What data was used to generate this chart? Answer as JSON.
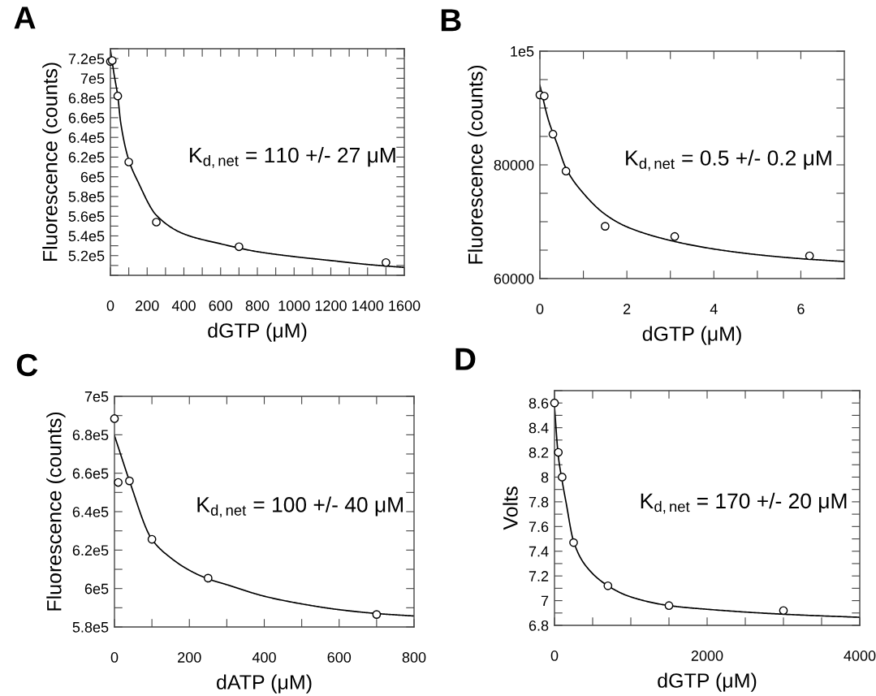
{
  "chart_data": [
    {
      "type": "scatter",
      "title": "A",
      "xlabel": "dGTP (μM)",
      "ylabel": "Fluorescence (counts)",
      "annotations": [
        "K$_{d,net}$ = 110 +/- 27 μM"
      ],
      "xlim": [
        0,
        1600
      ],
      "ylim": [
        500000,
        730000
      ],
      "xticks": [
        0,
        {
          "value": 100,
          "label": null
        },
        200,
        {
          "value": 300,
          "label": null
        },
        400,
        {
          "value": 500,
          "label": null
        },
        600,
        {
          "value": 700,
          "label": null
        },
        800,
        {
          "value": 900,
          "label": null
        },
        1000,
        {
          "value": 1100,
          "label": null
        },
        1200,
        {
          "value": 1300,
          "label": null
        },
        1400,
        {
          "value": 1500,
          "label": null
        },
        1600
      ],
      "yticks": [
        {
          "value": 500000,
          "label": null
        },
        {
          "value": 510000,
          "label": null
        },
        {
          "value": 520000,
          "label": "5.2e5"
        },
        {
          "value": 530000,
          "label": null
        },
        {
          "value": 540000,
          "label": "5.4e5"
        },
        {
          "value": 550000,
          "label": null
        },
        {
          "value": 560000,
          "label": "5.6e5"
        },
        {
          "value": 570000,
          "label": null
        },
        {
          "value": 580000,
          "label": "5.8e5"
        },
        {
          "value": 590000,
          "label": null
        },
        {
          "value": 600000,
          "label": "6e5"
        },
        {
          "value": 610000,
          "label": null
        },
        {
          "value": 620000,
          "label": "6.2e5"
        },
        {
          "value": 630000,
          "label": null
        },
        {
          "value": 640000,
          "label": "6.4e5"
        },
        {
          "value": 650000,
          "label": null
        },
        {
          "value": 660000,
          "label": "6.6e5"
        },
        {
          "value": 670000,
          "label": null
        },
        {
          "value": 680000,
          "label": "6.8e5"
        },
        {
          "value": 690000,
          "label": null
        },
        {
          "value": 700000,
          "label": "7e5"
        },
        {
          "value": 710000,
          "label": null
        },
        {
          "value": 720000,
          "label": "7.2e5"
        },
        {
          "value": 730000,
          "label": null
        }
      ],
      "grid": false,
      "legend": false,
      "series": [
        {
          "type": "scatter",
          "color": "#000000",
          "marker": "circle",
          "x": [
            0,
            10,
            40,
            100,
            250,
            700,
            1500
          ],
          "values": [
            717000,
            718000,
            682000,
            615000,
            554000,
            529000,
            513000
          ]
        },
        {
          "type": "line",
          "color": "#000000",
          "marker": "none",
          "line_style": "solid",
          "x": [
            0,
            20,
            40,
            56,
            100,
            150,
            250,
            400,
            600,
            800,
            1000,
            1200,
            1400,
            1600
          ],
          "values": [
            729000,
            704000,
            682000,
            655000,
            617000,
            595000,
            561000,
            542000,
            532000,
            524000,
            519000,
            515000,
            511000,
            508000
          ]
        }
      ]
    },
    {
      "type": "scatter",
      "title": "B",
      "xlabel": "dGTP (μM)",
      "ylabel": "Fluorescence (counts)",
      "annotations": [
        "K$_{d,net}$ = 0.5 +/- 0.2 μM"
      ],
      "xlim": [
        0,
        7
      ],
      "ylim": [
        60000,
        100000
      ],
      "xticks": [
        0,
        {
          "value": 1,
          "label": null
        },
        2,
        {
          "value": 3,
          "label": null
        },
        4,
        {
          "value": 5,
          "label": null
        },
        6
      ],
      "yticks": [
        60000,
        {
          "value": 65000,
          "label": null
        },
        {
          "value": 70000,
          "label": null
        },
        {
          "value": 75000,
          "label": null
        },
        80000,
        {
          "value": 85000,
          "label": null
        },
        {
          "value": 90000,
          "label": null
        },
        {
          "value": 95000,
          "label": null
        },
        {
          "value": 100000,
          "label": "1e5"
        }
      ],
      "grid": false,
      "legend": false,
      "series": [
        {
          "type": "scatter",
          "color": "#000000",
          "marker": "circle",
          "x": [
            0,
            0.1,
            0.3,
            0.6,
            1.5,
            3.1,
            6.2
          ],
          "values": [
            92300,
            92100,
            85400,
            78900,
            69200,
            67400,
            64000
          ]
        },
        {
          "type": "line",
          "color": "#000000",
          "marker": "none",
          "line_style": "solid",
          "x": [
            0,
            0.2,
            0.4,
            0.6,
            1,
            1.5,
            2,
            3,
            4,
            5,
            6,
            7
          ],
          "values": [
            94000,
            87800,
            83600,
            79400,
            75000,
            71300,
            69100,
            66700,
            65200,
            64200,
            63500,
            63000
          ]
        }
      ]
    },
    {
      "type": "scatter",
      "title": "C",
      "xlabel": "dATP (μM)",
      "ylabel": "Fluorescence (counts)",
      "annotations": [
        "K$_{d,net}$ = 100 +/- 40 μM"
      ],
      "xlim": [
        0,
        800
      ],
      "ylim": [
        580000,
        700000
      ],
      "xticks": [
        0,
        {
          "value": 100,
          "label": null
        },
        200,
        {
          "value": 300,
          "label": null
        },
        400,
        {
          "value": 500,
          "label": null
        },
        600,
        {
          "value": 700,
          "label": null
        },
        800
      ],
      "yticks": [
        {
          "value": 580000,
          "label": "5.8e5"
        },
        {
          "value": 590000,
          "label": null
        },
        {
          "value": 600000,
          "label": "6e5"
        },
        {
          "value": 610000,
          "label": null
        },
        {
          "value": 620000,
          "label": "6.2e5"
        },
        {
          "value": 630000,
          "label": null
        },
        {
          "value": 640000,
          "label": "6.4e5"
        },
        {
          "value": 650000,
          "label": null
        },
        {
          "value": 660000,
          "label": "6.6e5"
        },
        {
          "value": 670000,
          "label": null
        },
        {
          "value": 680000,
          "label": "6.8e5"
        },
        {
          "value": 690000,
          "label": null
        },
        {
          "value": 700000,
          "label": "7e5"
        }
      ],
      "grid": false,
      "legend": false,
      "series": [
        {
          "type": "scatter",
          "color": "#000000",
          "marker": "circle",
          "x": [
            0,
            10,
            40,
            100,
            250,
            700
          ],
          "values": [
            688400,
            655200,
            656000,
            625600,
            605400,
            586500
          ]
        },
        {
          "type": "line",
          "color": "#000000",
          "marker": "none",
          "line_style": "solid",
          "x": [
            0,
            20,
            40,
            100,
            150,
            200,
            250,
            300,
            400,
            500,
            600,
            700,
            800
          ],
          "values": [
            679600,
            667700,
            656000,
            625600,
            616000,
            609500,
            605000,
            602000,
            596000,
            592000,
            589000,
            587000,
            585700
          ]
        }
      ]
    },
    {
      "type": "scatter",
      "title": "D",
      "xlabel": "dGTP (μM)",
      "ylabel": "Volts",
      "annotations": [
        "K$_{d,net}$ = 170 +/- 20 μM"
      ],
      "xlim": [
        0,
        4000
      ],
      "ylim": [
        6.8,
        8.7
      ],
      "xticks": [
        0,
        {
          "value": 500,
          "label": null
        },
        {
          "value": 1000,
          "label": null
        },
        {
          "value": 1500,
          "label": null
        },
        2000,
        {
          "value": 2500,
          "label": null
        },
        {
          "value": 3000,
          "label": null
        },
        {
          "value": 3500,
          "label": null
        },
        4000
      ],
      "yticks": [
        6.8,
        {
          "value": 6.9,
          "label": null
        },
        7,
        {
          "value": 7.1,
          "label": null
        },
        7.2,
        {
          "value": 7.3,
          "label": null
        },
        7.4,
        {
          "value": 7.5,
          "label": null
        },
        7.6,
        {
          "value": 7.7,
          "label": null
        },
        7.8,
        {
          "value": 7.9,
          "label": null
        },
        8,
        {
          "value": 8.1,
          "label": null
        },
        8.2,
        {
          "value": 8.3,
          "label": null
        },
        8.4,
        {
          "value": 8.5,
          "label": null
        },
        8.6,
        {
          "value": 8.7,
          "label": null
        }
      ],
      "grid": false,
      "legend": false,
      "series": [
        {
          "type": "scatter",
          "color": "#000000",
          "marker": "circle",
          "x": [
            0,
            50,
            100,
            250,
            700,
            1500,
            3000
          ],
          "values": [
            8.6,
            8.2,
            8.0,
            7.47,
            7.12,
            6.96,
            6.92
          ]
        },
        {
          "type": "line",
          "color": "#000000",
          "marker": "none",
          "line_style": "solid",
          "x": [
            0,
            50,
            100,
            150,
            250,
            400,
            700,
            1000,
            1500,
            2000,
            3000,
            4000
          ],
          "values": [
            8.57,
            8.17,
            7.97,
            7.8,
            7.48,
            7.29,
            7.12,
            7.03,
            6.96,
            6.93,
            6.89,
            6.865
          ]
        }
      ]
    }
  ]
}
